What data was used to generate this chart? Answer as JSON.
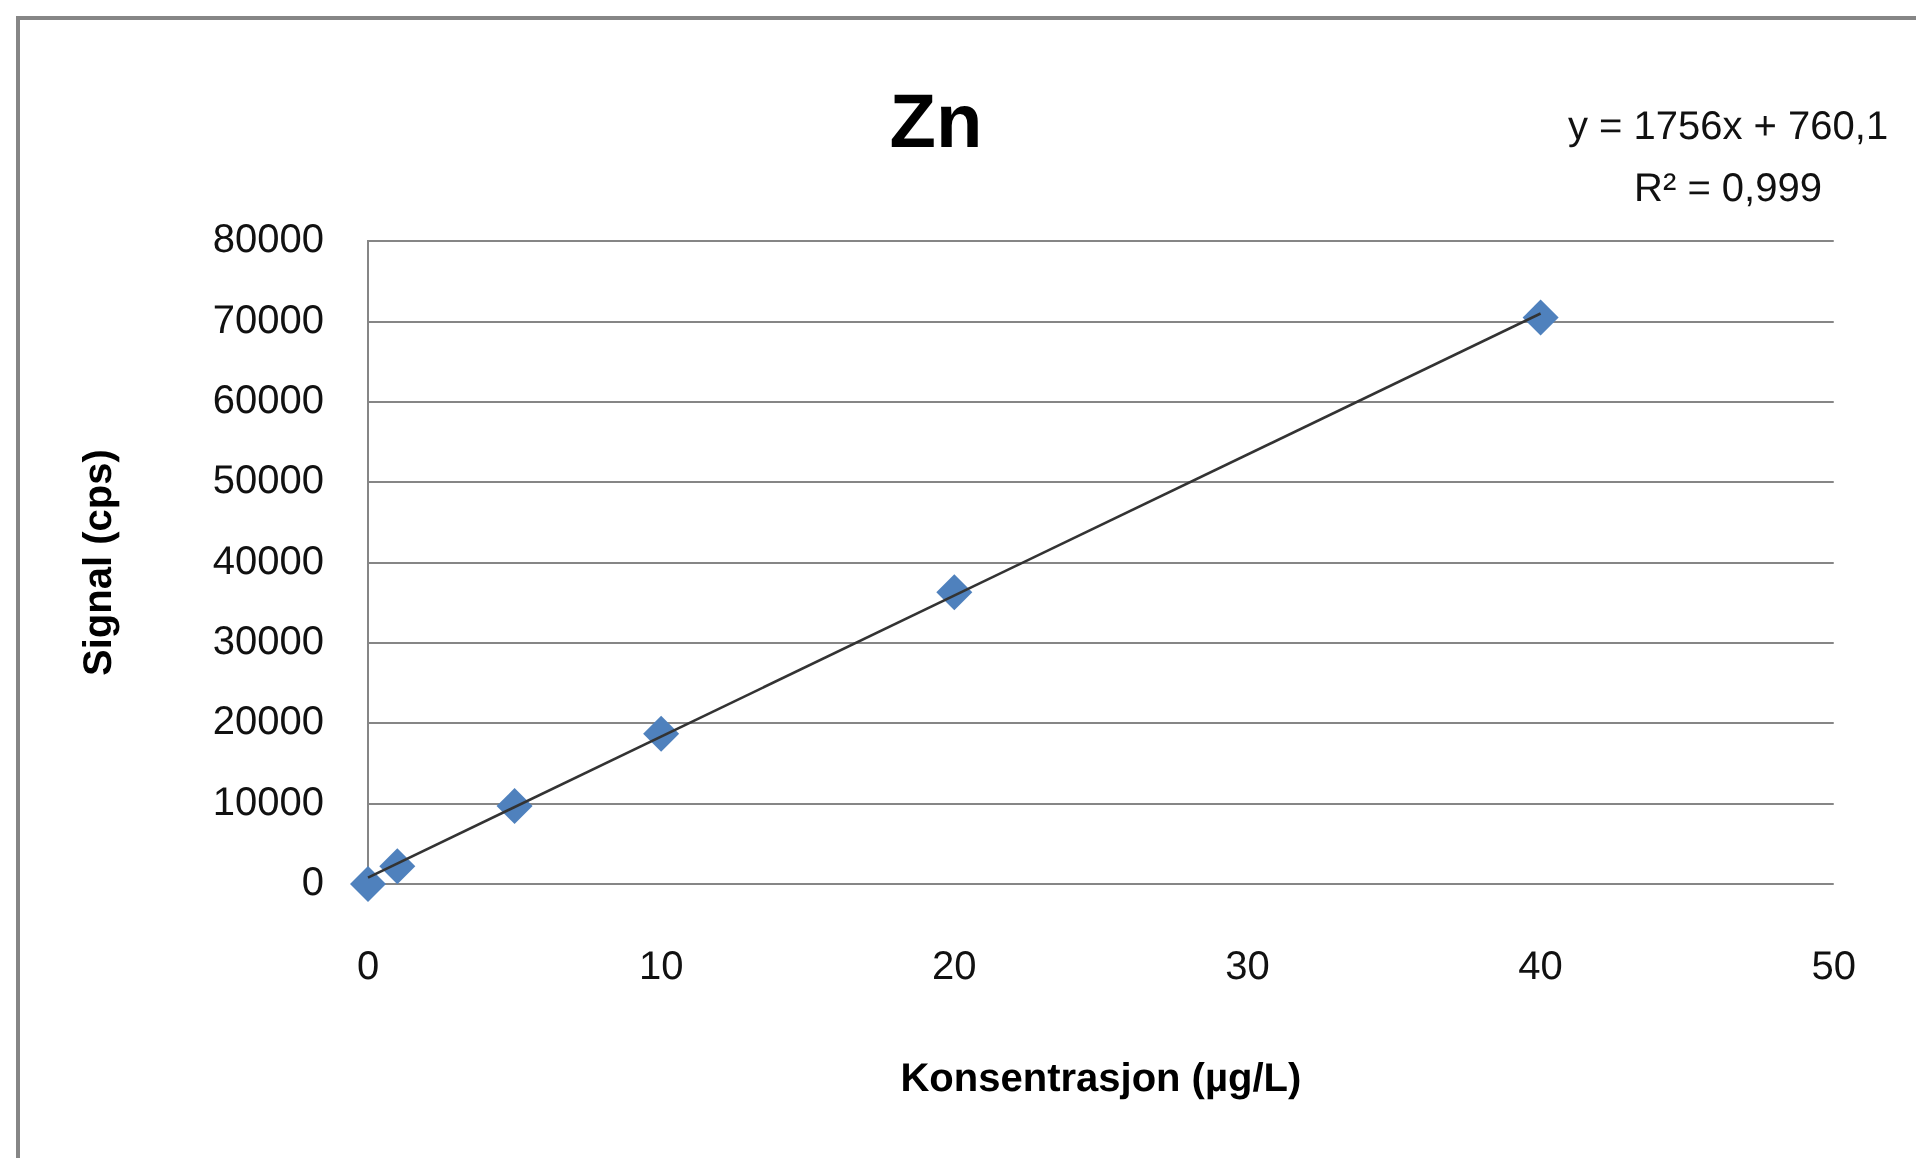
{
  "chart_data": {
    "type": "scatter",
    "title": "Zn",
    "xlabel": "Konsentrasjon (µg/L)",
    "ylabel": "Signal (cps)",
    "x": [
      0,
      1,
      5,
      10,
      20,
      40
    ],
    "series": [
      {
        "color": "#4f81bd",
        "values": [
          0,
          2200,
          9700,
          18700,
          36300,
          70500
        ]
      },
      {
        "type": "line",
        "color": "#333333",
        "x": [
          0,
          40
        ],
        "values": [
          800,
          71000
        ],
        "marker": "none"
      }
    ],
    "xlim": [
      0,
      50
    ],
    "xticks": [
      0,
      10,
      20,
      30,
      40,
      50
    ],
    "ylim": [
      0,
      80000
    ],
    "yticks": [
      0,
      10000,
      20000,
      30000,
      40000,
      50000,
      60000,
      70000,
      80000
    ],
    "grid": "y",
    "marker": "diamond",
    "annotations": [
      "y = 1756x + 760,1",
      "R² = 0,999"
    ]
  }
}
